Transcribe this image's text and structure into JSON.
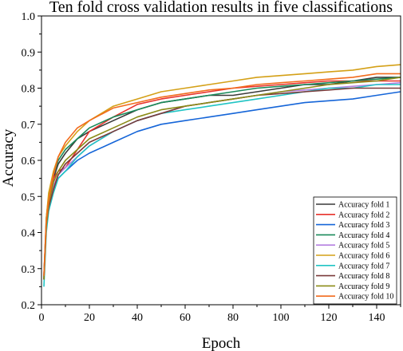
{
  "chart_data": {
    "type": "line",
    "title": "Ten fold cross validation results in five classifications",
    "xlabel": "Epoch",
    "ylabel": "Accuracy",
    "xlim": [
      0,
      150
    ],
    "ylim": [
      0.2,
      1.0
    ],
    "x_ticks": [
      "0",
      "20",
      "40",
      "60",
      "80",
      "100",
      "120",
      "140"
    ],
    "y_ticks": [
      "0.2",
      "0.3",
      "0.4",
      "0.5",
      "0.6",
      "0.7",
      "0.8",
      "0.9",
      "1.0"
    ],
    "grid": false,
    "legend_position": "bottom-right",
    "x": [
      1,
      2,
      3,
      5,
      7,
      10,
      15,
      20,
      30,
      40,
      50,
      60,
      70,
      80,
      90,
      100,
      110,
      120,
      130,
      140,
      150
    ],
    "series": [
      {
        "name": "Accuracy fold 1",
        "color": "#3a3a3a",
        "values": [
          0.27,
          0.42,
          0.49,
          0.55,
          0.59,
          0.62,
          0.66,
          0.68,
          0.71,
          0.74,
          0.76,
          0.77,
          0.78,
          0.78,
          0.79,
          0.8,
          0.81,
          0.81,
          0.82,
          0.83,
          0.83
        ]
      },
      {
        "name": "Accuracy fold 2",
        "color": "#e8322b",
        "values": [
          0.28,
          0.43,
          0.5,
          0.55,
          0.57,
          0.58,
          0.63,
          0.68,
          0.72,
          0.755,
          0.77,
          0.78,
          0.79,
          0.8,
          0.805,
          0.81,
          0.815,
          0.82,
          0.82,
          0.82,
          0.82
        ]
      },
      {
        "name": "Accuracy fold 3",
        "color": "#1565d8",
        "values": [
          0.28,
          0.42,
          0.47,
          0.52,
          0.55,
          0.57,
          0.6,
          0.62,
          0.65,
          0.68,
          0.7,
          0.71,
          0.72,
          0.73,
          0.74,
          0.75,
          0.76,
          0.765,
          0.77,
          0.78,
          0.79
        ]
      },
      {
        "name": "Accuracy fold 4",
        "color": "#1a8a5a",
        "values": [
          0.27,
          0.44,
          0.5,
          0.56,
          0.6,
          0.63,
          0.66,
          0.69,
          0.72,
          0.74,
          0.76,
          0.77,
          0.78,
          0.79,
          0.8,
          0.805,
          0.81,
          0.815,
          0.82,
          0.825,
          0.83
        ]
      },
      {
        "name": "Accuracy fold 5",
        "color": "#b57fe0",
        "values": [
          0.27,
          0.42,
          0.48,
          0.53,
          0.56,
          0.58,
          0.61,
          0.64,
          0.68,
          0.71,
          0.73,
          0.75,
          0.76,
          0.77,
          0.78,
          0.79,
          0.795,
          0.8,
          0.805,
          0.81,
          0.815
        ]
      },
      {
        "name": "Accuracy fold 6",
        "color": "#d4a017",
        "values": [
          0.28,
          0.44,
          0.51,
          0.57,
          0.61,
          0.64,
          0.68,
          0.71,
          0.75,
          0.77,
          0.79,
          0.8,
          0.81,
          0.82,
          0.83,
          0.835,
          0.84,
          0.845,
          0.85,
          0.86,
          0.865
        ]
      },
      {
        "name": "Accuracy fold 7",
        "color": "#21c4c4",
        "values": [
          0.25,
          0.4,
          0.46,
          0.51,
          0.55,
          0.57,
          0.61,
          0.64,
          0.68,
          0.71,
          0.73,
          0.74,
          0.75,
          0.76,
          0.77,
          0.78,
          0.79,
          0.8,
          0.8,
          0.81,
          0.81
        ]
      },
      {
        "name": "Accuracy fold 8",
        "color": "#7a3a3a",
        "values": [
          0.27,
          0.42,
          0.47,
          0.52,
          0.56,
          0.59,
          0.62,
          0.65,
          0.68,
          0.71,
          0.73,
          0.75,
          0.76,
          0.77,
          0.78,
          0.785,
          0.79,
          0.795,
          0.8,
          0.8,
          0.8
        ]
      },
      {
        "name": "Accuracy fold 9",
        "color": "#8b8b17",
        "values": [
          0.27,
          0.42,
          0.48,
          0.54,
          0.57,
          0.6,
          0.63,
          0.66,
          0.69,
          0.72,
          0.74,
          0.75,
          0.76,
          0.77,
          0.78,
          0.79,
          0.8,
          0.81,
          0.815,
          0.82,
          0.83
        ]
      },
      {
        "name": "Accuracy fold 10",
        "color": "#f26b1d",
        "values": [
          0.28,
          0.43,
          0.49,
          0.56,
          0.61,
          0.65,
          0.69,
          0.71,
          0.745,
          0.76,
          0.775,
          0.785,
          0.795,
          0.8,
          0.81,
          0.815,
          0.82,
          0.825,
          0.83,
          0.84,
          0.84
        ]
      }
    ]
  }
}
